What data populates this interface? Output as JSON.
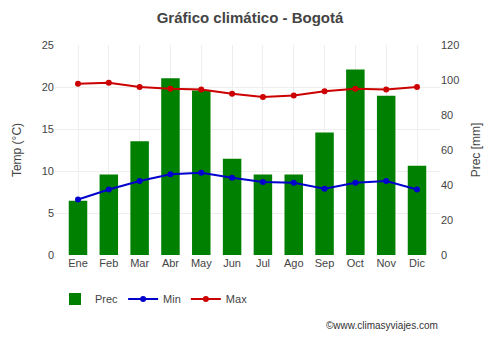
{
  "chart_data": {
    "type": "bar",
    "title": "Gráfico climático - Bogotá",
    "categories": [
      "Ene",
      "Feb",
      "Mar",
      "Abr",
      "May",
      "Jun",
      "Jul",
      "Ago",
      "Sep",
      "Oct",
      "Nov",
      "Dic"
    ],
    "series": [
      {
        "name": "Prec",
        "type": "bar",
        "axis": "y2",
        "color": "#008000",
        "values": [
          31,
          46,
          65,
          101,
          94,
          55,
          46,
          46,
          70,
          106,
          91,
          51
        ]
      },
      {
        "name": "Min",
        "type": "line",
        "marker": "circle",
        "color": "#0000cc",
        "values": [
          6.6,
          7.8,
          8.8,
          9.6,
          9.8,
          9.2,
          8.7,
          8.6,
          7.9,
          8.6,
          8.8,
          7.8
        ]
      },
      {
        "name": "Max",
        "type": "line",
        "marker": "circle",
        "color": "#cc0000",
        "values": [
          20.4,
          20.5,
          20.0,
          19.8,
          19.7,
          19.2,
          18.8,
          19.0,
          19.5,
          19.8,
          19.7,
          20.0
        ]
      }
    ],
    "ylabel": "Temp (°C)",
    "y2label": "Prec [mm]",
    "ylim": [
      0,
      25
    ],
    "yticks": [
      0,
      5,
      10,
      15,
      20,
      25
    ],
    "y2lim": [
      0,
      120
    ],
    "y2ticks": [
      0,
      20,
      40,
      60,
      80,
      100,
      120
    ],
    "grid": true,
    "legend": "bottom",
    "annotations": [
      "©www.climasyviajes.com"
    ]
  }
}
